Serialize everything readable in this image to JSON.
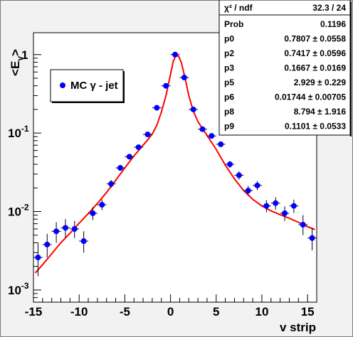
{
  "chart_data": {
    "type": "scatter",
    "xlabel": "v strip",
    "ylabel": "<E",
    "ylabel_sub": "v",
    "ylabel_close": ">",
    "x_range": [
      -15,
      16
    ],
    "y_range": [
      0.0007,
      1.9
    ],
    "y_scale": "log",
    "x_ticks": [
      -15,
      -10,
      -5,
      0,
      5,
      10,
      15
    ],
    "x_tick_labels": [
      "-15",
      "-10",
      "-5",
      "0",
      "5",
      "10",
      "15"
    ],
    "y_ticks": [
      0.001,
      0.01,
      0.1,
      1
    ],
    "y_tick_labels": [
      {
        "base": "10",
        "exp": "-3"
      },
      {
        "base": "10",
        "exp": "-2"
      },
      {
        "base": "10",
        "exp": "-1"
      },
      {
        "base": "1",
        "exp": ""
      }
    ],
    "legend": {
      "label": "MC γ - jet",
      "placement": "top-left",
      "marker_color": "#0000ff"
    },
    "series": [
      {
        "name": "MC γ - jet",
        "color": "#0000ff",
        "points": [
          {
            "x": -14.5,
            "y": 0.0026,
            "ylo": 0.0015,
            "yhi": 0.004
          },
          {
            "x": -13.5,
            "y": 0.0038,
            "ylo": 0.0026,
            "yhi": 0.0052
          },
          {
            "x": -12.5,
            "y": 0.0056,
            "ylo": 0.004,
            "yhi": 0.0073
          },
          {
            "x": -11.5,
            "y": 0.0062,
            "ylo": 0.0046,
            "yhi": 0.008
          },
          {
            "x": -10.5,
            "y": 0.006,
            "ylo": 0.0046,
            "yhi": 0.0076
          },
          {
            "x": -9.5,
            "y": 0.0042,
            "ylo": 0.003,
            "yhi": 0.0056
          },
          {
            "x": -8.5,
            "y": 0.0095,
            "ylo": 0.0078,
            "yhi": 0.0114
          },
          {
            "x": -7.5,
            "y": 0.0122,
            "ylo": 0.0104,
            "yhi": 0.0142
          },
          {
            "x": -6.5,
            "y": 0.0225,
            "ylo": 0.02,
            "yhi": 0.0252
          },
          {
            "x": -5.5,
            "y": 0.036,
            "ylo": 0.033,
            "yhi": 0.0392
          },
          {
            "x": -4.5,
            "y": 0.05,
            "ylo": 0.0465,
            "yhi": 0.0536
          },
          {
            "x": -3.5,
            "y": 0.066,
            "ylo": 0.062,
            "yhi": 0.0702
          },
          {
            "x": -2.5,
            "y": 0.096,
            "ylo": 0.091,
            "yhi": 0.1012
          },
          {
            "x": -1.5,
            "y": 0.21,
            "ylo": 0.202,
            "yhi": 0.218
          },
          {
            "x": -0.5,
            "y": 0.4,
            "ylo": 0.39,
            "yhi": 0.41
          },
          {
            "x": 0.5,
            "y": 1.0,
            "ylo": 0.985,
            "yhi": 1.015
          },
          {
            "x": 1.5,
            "y": 0.51,
            "ylo": 0.5,
            "yhi": 0.52
          },
          {
            "x": 2.5,
            "y": 0.2,
            "ylo": 0.193,
            "yhi": 0.207
          },
          {
            "x": 3.5,
            "y": 0.112,
            "ylo": 0.107,
            "yhi": 0.117
          },
          {
            "x": 4.5,
            "y": 0.092,
            "ylo": 0.087,
            "yhi": 0.097
          },
          {
            "x": 5.5,
            "y": 0.072,
            "ylo": 0.067,
            "yhi": 0.077
          },
          {
            "x": 6.5,
            "y": 0.04,
            "ylo": 0.036,
            "yhi": 0.044
          },
          {
            "x": 7.5,
            "y": 0.029,
            "ylo": 0.0255,
            "yhi": 0.0325
          },
          {
            "x": 8.5,
            "y": 0.0185,
            "ylo": 0.016,
            "yhi": 0.0212
          },
          {
            "x": 9.5,
            "y": 0.0215,
            "ylo": 0.0188,
            "yhi": 0.0244
          },
          {
            "x": 10.5,
            "y": 0.0118,
            "ylo": 0.0098,
            "yhi": 0.014
          },
          {
            "x": 11.5,
            "y": 0.0128,
            "ylo": 0.0106,
            "yhi": 0.0152
          },
          {
            "x": 12.5,
            "y": 0.0095,
            "ylo": 0.0076,
            "yhi": 0.0116
          },
          {
            "x": 13.5,
            "y": 0.0118,
            "ylo": 0.0096,
            "yhi": 0.0142
          },
          {
            "x": 14.5,
            "y": 0.0068,
            "ylo": 0.005,
            "yhi": 0.009
          },
          {
            "x": 15.5,
            "y": 0.0046,
            "ylo": 0.0032,
            "yhi": 0.0062
          }
        ]
      }
    ],
    "fit": {
      "color": "#ff0000",
      "points": [
        {
          "x": -14.8,
          "y": 0.00165
        },
        {
          "x": -14,
          "y": 0.0021
        },
        {
          "x": -13,
          "y": 0.0029
        },
        {
          "x": -12,
          "y": 0.004
        },
        {
          "x": -11,
          "y": 0.0053
        },
        {
          "x": -10,
          "y": 0.0071
        },
        {
          "x": -9,
          "y": 0.0094
        },
        {
          "x": -8,
          "y": 0.0127
        },
        {
          "x": -7,
          "y": 0.0175
        },
        {
          "x": -6,
          "y": 0.025
        },
        {
          "x": -5,
          "y": 0.036
        },
        {
          "x": -4,
          "y": 0.051
        },
        {
          "x": -3,
          "y": 0.07
        },
        {
          "x": -2.5,
          "y": 0.082
        },
        {
          "x": -2,
          "y": 0.097
        },
        {
          "x": -1.5,
          "y": 0.125
        },
        {
          "x": -1,
          "y": 0.185
        },
        {
          "x": -0.5,
          "y": 0.3
        },
        {
          "x": 0,
          "y": 0.56
        },
        {
          "x": 0.3,
          "y": 0.82
        },
        {
          "x": 0.6,
          "y": 0.98
        },
        {
          "x": 0.9,
          "y": 0.95
        },
        {
          "x": 1.2,
          "y": 0.78
        },
        {
          "x": 1.6,
          "y": 0.5
        },
        {
          "x": 2,
          "y": 0.3
        },
        {
          "x": 2.5,
          "y": 0.19
        },
        {
          "x": 3,
          "y": 0.14
        },
        {
          "x": 4,
          "y": 0.093
        },
        {
          "x": 5,
          "y": 0.062
        },
        {
          "x": 6,
          "y": 0.039
        },
        {
          "x": 7,
          "y": 0.026
        },
        {
          "x": 8,
          "y": 0.0185
        },
        {
          "x": 9,
          "y": 0.0143
        },
        {
          "x": 10,
          "y": 0.0118
        },
        {
          "x": 11,
          "y": 0.0102
        },
        {
          "x": 12,
          "y": 0.0091
        },
        {
          "x": 13,
          "y": 0.0082
        },
        {
          "x": 14,
          "y": 0.0073
        },
        {
          "x": 15,
          "y": 0.0064
        },
        {
          "x": 15.8,
          "y": 0.0059
        }
      ]
    }
  },
  "stats": {
    "header_label": "χ² / ndf",
    "header_value": "32.3 / 24",
    "rows": [
      {
        "name": "Prob",
        "value": "0.1196"
      },
      {
        "name": "p0",
        "value": "0.7807 ± 0.0558"
      },
      {
        "name": "p2",
        "value": "0.7417 ± 0.0596"
      },
      {
        "name": "p3",
        "value": "0.1667 ± 0.0169"
      },
      {
        "name": "p5",
        "value": "2.929 ± 0.229"
      },
      {
        "name": "p6",
        "value": "0.01744 ± 0.00705"
      },
      {
        "name": "p8",
        "value": "8.794 ± 1.916"
      },
      {
        "name": "p9",
        "value": "0.1101 ± 0.0533"
      }
    ]
  }
}
